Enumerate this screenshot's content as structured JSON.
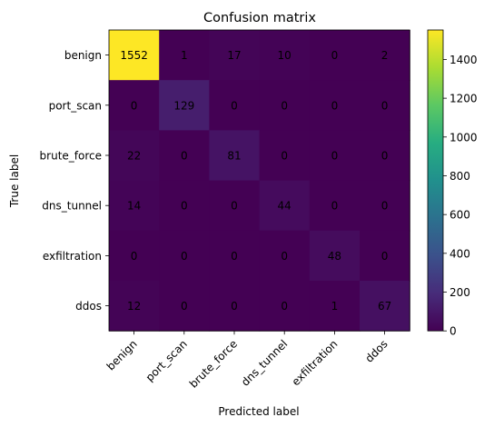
{
  "chart_data": {
    "type": "heatmap",
    "title": "Confusion matrix",
    "xlabel": "Predicted label",
    "ylabel": "True label",
    "labels": [
      "benign",
      "port_scan",
      "brute_force",
      "dns_tunnel",
      "exfiltration",
      "ddos"
    ],
    "matrix": [
      [
        1552,
        1,
        17,
        10,
        0,
        2
      ],
      [
        0,
        129,
        0,
        0,
        0,
        0
      ],
      [
        22,
        0,
        81,
        0,
        0,
        0
      ],
      [
        14,
        0,
        0,
        44,
        0,
        0
      ],
      [
        0,
        0,
        0,
        0,
        48,
        0
      ],
      [
        12,
        0,
        0,
        0,
        1,
        67
      ]
    ],
    "colormap": "viridis",
    "vmin": 0,
    "vmax": 1552,
    "colorbar_ticks": [
      0,
      200,
      400,
      600,
      800,
      1000,
      1200,
      1400
    ],
    "grid": false
  }
}
